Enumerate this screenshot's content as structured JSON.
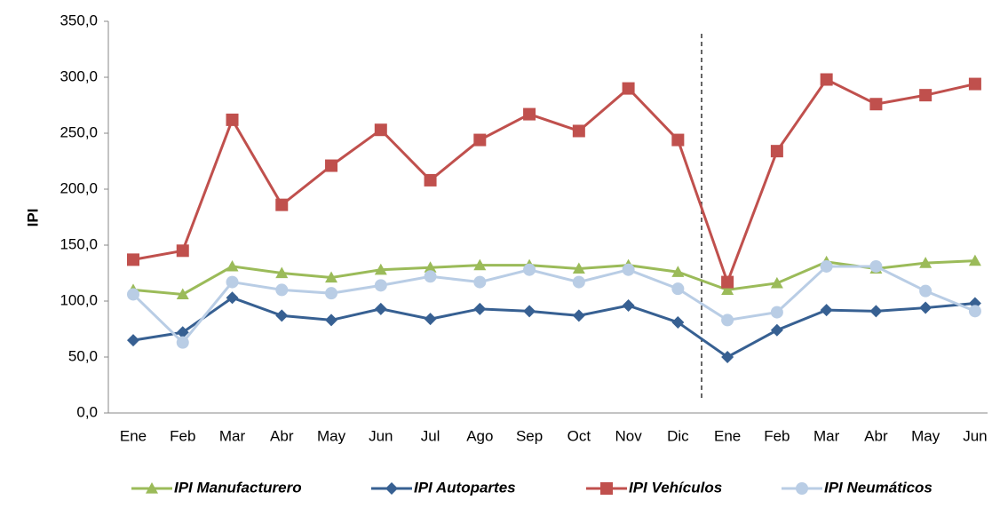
{
  "chart_data": {
    "type": "line",
    "y_label": "IPI",
    "categories": [
      "Ene",
      "Feb",
      "Mar",
      "Abr",
      "May",
      "Jun",
      "Jul",
      "Ago",
      "Sep",
      "Oct",
      "Nov",
      "Dic",
      "Ene",
      "Feb",
      "Mar",
      "Abr",
      "May",
      "Jun"
    ],
    "ylim": [
      0,
      350
    ],
    "yticks": [
      {
        "value": 0,
        "label": "0,0"
      },
      {
        "value": 50,
        "label": "50,0"
      },
      {
        "value": 100,
        "label": "100,0"
      },
      {
        "value": 150,
        "label": "150,0"
      },
      {
        "value": 200,
        "label": "200,0"
      },
      {
        "value": 250,
        "label": "250,0"
      },
      {
        "value": 300,
        "label": "300,0"
      },
      {
        "value": 350,
        "label": "350,0"
      }
    ],
    "grid": false,
    "legend": "bottom",
    "series": [
      {
        "name": "IPI Manufacturero",
        "color": "#9bbb59",
        "marker": "triangle",
        "values": [
          110,
          106,
          131,
          125,
          121,
          128,
          130,
          132,
          132,
          129,
          132,
          126,
          110,
          116,
          135,
          129,
          134,
          136
        ]
      },
      {
        "name": "IPI Autopartes",
        "color": "#376092",
        "marker": "diamond",
        "values": [
          65,
          72,
          103,
          87,
          83,
          93,
          84,
          93,
          91,
          87,
          96,
          81,
          50,
          74,
          92,
          91,
          94,
          98
        ]
      },
      {
        "name": "IPI Vehículos",
        "color": "#c0504d",
        "marker": "square",
        "values": [
          137,
          145,
          262,
          186,
          221,
          253,
          208,
          244,
          267,
          252,
          290,
          244,
          117,
          234,
          298,
          276,
          284,
          294
        ]
      },
      {
        "name": "IPI Neumáticos",
        "color": "#b9cde5",
        "marker": "circle",
        "values": [
          106,
          63,
          117,
          110,
          107,
          114,
          122,
          117,
          128,
          117,
          128,
          111,
          83,
          90,
          131,
          131,
          109,
          91
        ]
      }
    ]
  }
}
